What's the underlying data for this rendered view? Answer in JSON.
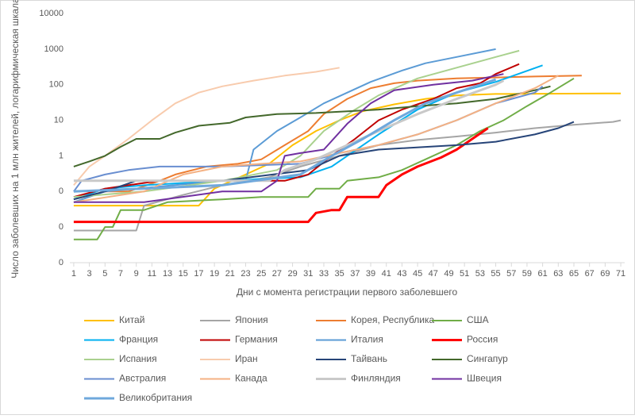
{
  "chart_data": {
    "type": "line",
    "y_label": "Число заболевших на 1 млн жителей, логарифмическая шкала",
    "x_label": "Дни с момента регистрации первого заболевшего",
    "log_scale": true,
    "xlim": [
      0.5,
      71.5
    ],
    "xticks": [
      1,
      3,
      5,
      7,
      9,
      11,
      13,
      15,
      17,
      19,
      21,
      23,
      25,
      27,
      29,
      31,
      33,
      35,
      37,
      39,
      41,
      43,
      45,
      47,
      49,
      51,
      53,
      55,
      57,
      59,
      61,
      63,
      65,
      67,
      69,
      71
    ],
    "ylim": [
      0.001,
      10000
    ],
    "yticks": [
      10000,
      1000,
      100,
      10,
      1,
      {
        "value": 0.1,
        "label": "0"
      },
      {
        "value": 0.01,
        "label": "0"
      },
      {
        "value": 0.001,
        "label": "0"
      }
    ],
    "series": [
      {
        "name": "Китай",
        "color": "#ffc000",
        "width": 2,
        "x": [
          1,
          10,
          17,
          19,
          23,
          26,
          29,
          32,
          35,
          38,
          42,
          46,
          50,
          55,
          71
        ],
        "values": [
          0.04,
          0.04,
          0.04,
          0.12,
          0.3,
          0.6,
          2,
          5,
          10,
          18,
          28,
          40,
          50,
          55,
          57
        ]
      },
      {
        "name": "Япония",
        "color": "#a5a5a5",
        "width": 2,
        "x": [
          1,
          9,
          10,
          15,
          20,
          26,
          30,
          35,
          40,
          45,
          50,
          55,
          60,
          65,
          70,
          71
        ],
        "values": [
          0.008,
          0.008,
          0.04,
          0.08,
          0.15,
          0.25,
          0.5,
          1,
          2,
          2.8,
          3.5,
          4.5,
          6,
          7.5,
          9,
          10
        ]
      },
      {
        "name": "Корея, Республика",
        "color": "#ed7d31",
        "width": 2,
        "x": [
          1,
          5,
          8,
          12,
          14,
          18,
          22,
          25,
          28,
          31,
          33,
          36,
          39,
          42,
          45,
          50,
          55,
          60,
          66
        ],
        "values": [
          0.06,
          0.1,
          0.1,
          0.2,
          0.3,
          0.5,
          0.6,
          0.8,
          2,
          5,
          15,
          40,
          80,
          110,
          130,
          150,
          160,
          170,
          180
        ]
      },
      {
        "name": "США",
        "color": "#70ad47",
        "width": 2,
        "x": [
          1,
          4,
          5,
          6,
          7,
          10,
          13,
          20,
          25,
          31,
          32,
          35,
          36,
          40,
          43,
          46,
          50,
          53,
          56,
          59,
          62,
          65
        ],
        "values": [
          0.0045,
          0.0045,
          0.01,
          0.01,
          0.03,
          0.03,
          0.05,
          0.06,
          0.07,
          0.07,
          0.12,
          0.12,
          0.2,
          0.25,
          0.4,
          0.8,
          2,
          5,
          10,
          25,
          60,
          150
        ]
      },
      {
        "name": "Франция",
        "color": "#00b0f0",
        "width": 2,
        "x": [
          1,
          5,
          10,
          20,
          30,
          34,
          38,
          40,
          45,
          50,
          55,
          61
        ],
        "values": [
          0.06,
          0.12,
          0.15,
          0.2,
          0.25,
          0.5,
          2,
          4,
          20,
          60,
          120,
          350
        ]
      },
      {
        "name": "Германия",
        "color": "#c00000",
        "width": 2,
        "x": [
          1,
          5,
          8,
          12,
          28,
          31,
          34,
          37,
          40,
          43,
          47,
          50,
          53,
          55,
          58
        ],
        "values": [
          0.07,
          0.12,
          0.15,
          0.2,
          0.2,
          0.3,
          1,
          3,
          10,
          20,
          40,
          80,
          110,
          200,
          380
        ]
      },
      {
        "name": "Италия",
        "color": "#5b9bd5",
        "width": 2,
        "x": [
          1,
          5,
          20,
          23,
          24,
          27,
          30,
          33,
          36,
          39,
          43,
          46,
          50,
          55
        ],
        "values": [
          0.05,
          0.1,
          0.2,
          0.2,
          1.5,
          5,
          12,
          30,
          60,
          120,
          250,
          400,
          600,
          1000
        ]
      },
      {
        "name": "Россия",
        "color": "#ff0000",
        "width": 3,
        "x": [
          1,
          31,
          32,
          34,
          35,
          36,
          40,
          41,
          43,
          45,
          48,
          50,
          52,
          54
        ],
        "values": [
          0.014,
          0.014,
          0.025,
          0.03,
          0.03,
          0.07,
          0.07,
          0.15,
          0.3,
          0.5,
          0.9,
          1.5,
          3,
          6
        ]
      },
      {
        "name": "Испания",
        "color": "#a9d18e",
        "width": 2,
        "x": [
          1,
          10,
          20,
          27,
          30,
          33,
          37,
          40,
          45,
          50,
          55,
          58
        ],
        "values": [
          0.07,
          0.1,
          0.2,
          0.4,
          1,
          5,
          20,
          50,
          150,
          300,
          600,
          900
        ]
      },
      {
        "name": "Иран",
        "color": "#f8cbad",
        "width": 2,
        "x": [
          1,
          3,
          5,
          8,
          11,
          14,
          17,
          20,
          24,
          28,
          32,
          35
        ],
        "values": [
          0.15,
          0.5,
          1,
          3,
          10,
          30,
          60,
          90,
          130,
          180,
          230,
          300
        ]
      },
      {
        "name": "Тайвань",
        "color": "#264478",
        "width": 2,
        "x": [
          1,
          5,
          9,
          20,
          31,
          35,
          40,
          50,
          55,
          60,
          63,
          65
        ],
        "values": [
          0.06,
          0.1,
          0.2,
          0.2,
          0.4,
          1,
          1.5,
          2,
          2.5,
          4,
          6,
          9
        ]
      },
      {
        "name": "Сингапур",
        "color": "#43682b",
        "width": 2,
        "x": [
          1,
          3,
          5,
          7,
          9,
          12,
          14,
          17,
          21,
          23,
          27,
          32,
          40,
          45,
          50,
          55,
          60,
          62
        ],
        "values": [
          0.5,
          0.7,
          1,
          1.8,
          3,
          3,
          4.5,
          7,
          8.5,
          12,
          15,
          16,
          20,
          25,
          30,
          40,
          70,
          90
        ]
      },
      {
        "name": "Австралия",
        "color": "#698ed0",
        "width": 2,
        "x": [
          1,
          2,
          5,
          8,
          12,
          20,
          30,
          35,
          40,
          45,
          50,
          55,
          60,
          61
        ],
        "values": [
          0.1,
          0.2,
          0.3,
          0.4,
          0.5,
          0.5,
          0.6,
          1.2,
          2,
          4,
          10,
          30,
          60,
          90
        ]
      },
      {
        "name": "Канада",
        "color": "#f4b183",
        "width": 2,
        "x": [
          1,
          10,
          15,
          20,
          25,
          30,
          35,
          40,
          45,
          50,
          55,
          60,
          63
        ],
        "values": [
          0.05,
          0.1,
          0.3,
          0.5,
          0.6,
          0.7,
          1.2,
          2,
          4,
          10,
          30,
          80,
          180
        ]
      },
      {
        "name": "Финляндия",
        "color": "#c9c9c9",
        "width": 3,
        "x": [
          1,
          26,
          28,
          32,
          36,
          40,
          45,
          50,
          55,
          56
        ],
        "values": [
          0.2,
          0.2,
          0.4,
          0.8,
          2,
          5,
          15,
          40,
          100,
          130
        ]
      },
      {
        "name": "Швеция",
        "color": "#7030a0",
        "width": 2,
        "x": [
          1,
          10,
          20,
          25,
          27,
          28,
          30,
          33,
          36,
          39,
          42,
          47,
          52,
          56
        ],
        "values": [
          0.05,
          0.05,
          0.1,
          0.1,
          0.2,
          1,
          1.2,
          1.5,
          8,
          30,
          70,
          100,
          130,
          200
        ]
      },
      {
        "name": "Великобритания",
        "color": "#6fa8dc",
        "width": 3,
        "x": [
          1,
          20,
          30,
          34,
          38,
          42,
          46,
          50,
          55
        ],
        "values": [
          0.1,
          0.15,
          0.3,
          1,
          3,
          10,
          30,
          60,
          140
        ]
      }
    ]
  }
}
